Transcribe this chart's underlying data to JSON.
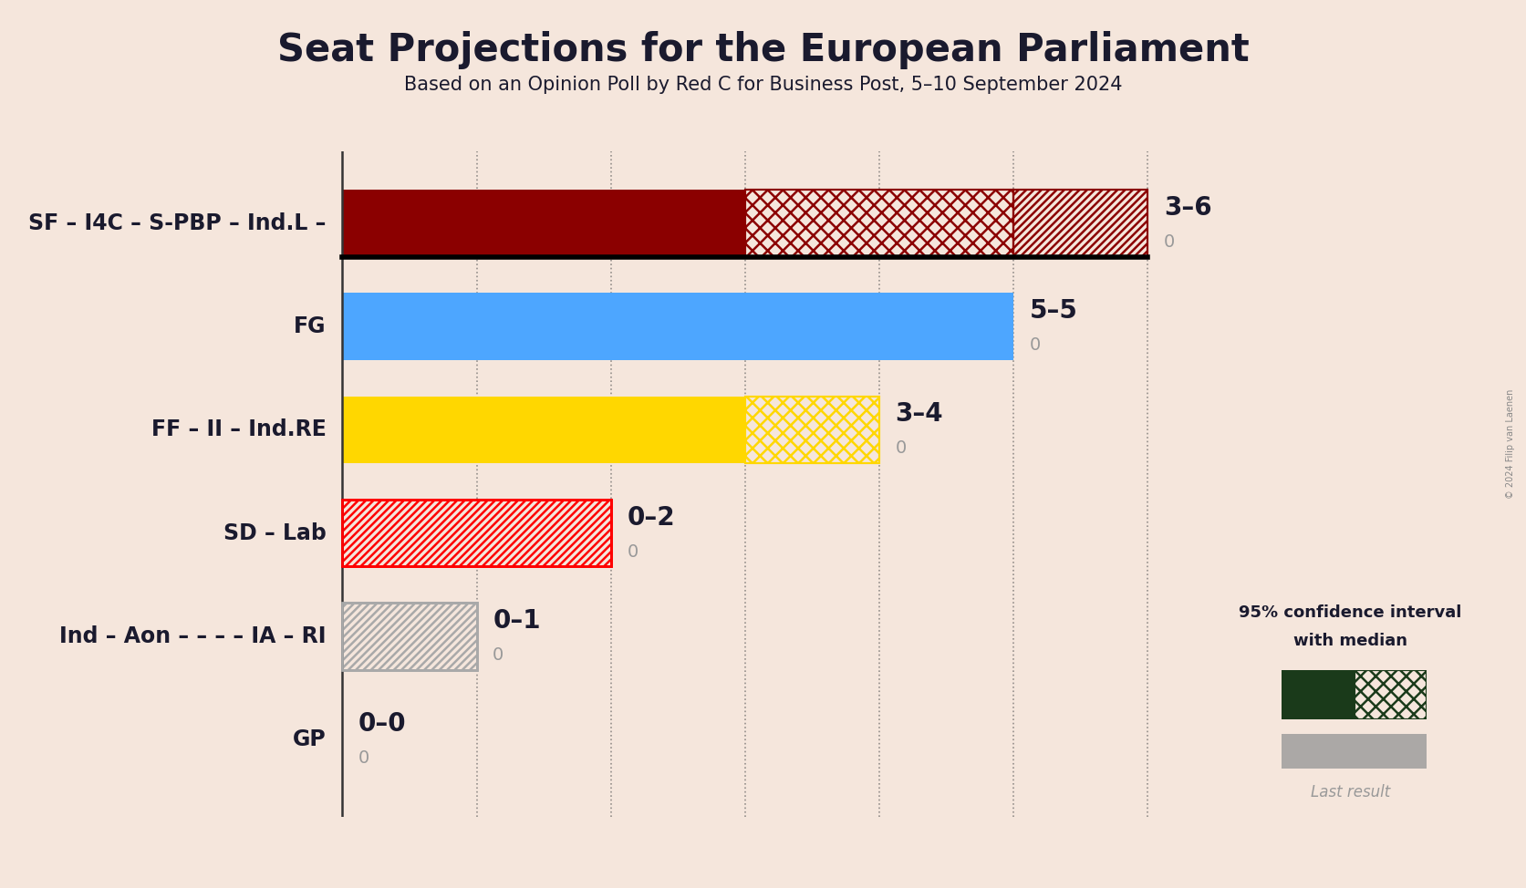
{
  "title": "Seat Projections for the European Parliament",
  "subtitle": "Based on an Opinion Poll by Red C for Business Post, 5–10 September 2024",
  "watermark": "© 2024 Filip van Laenen",
  "background_color": "#f5e6dc",
  "parties": [
    "SF – I4C – S-PBP – Ind.L –",
    "FG",
    "FF – II – Ind.RE",
    "SD – Lab",
    "Ind – Aon – – – – IA – RI",
    "GP"
  ],
  "median": [
    3,
    5,
    3,
    0,
    0,
    0
  ],
  "ci_high": [
    6,
    5,
    4,
    2,
    1,
    0
  ],
  "last_result": [
    0,
    0,
    0,
    0,
    0,
    0
  ],
  "range_labels": [
    "3–6",
    "5–5",
    "3–4",
    "0–2",
    "0–1",
    "0–0"
  ],
  "bar_colors": [
    "#8B0000",
    "#4da6ff",
    "#FFD700",
    "#FF0000",
    "#A9A9A9",
    "#006400"
  ],
  "xlim_max": 7,
  "bar_height": 0.65,
  "title_fontsize": 30,
  "subtitle_fontsize": 15,
  "label_fontsize": 17,
  "annotation_fontsize": 20,
  "last_result_color": "#999999",
  "text_color": "#1a1a2e",
  "grid_color": "#555555",
  "legend_dark_color": "#1a3a1a"
}
